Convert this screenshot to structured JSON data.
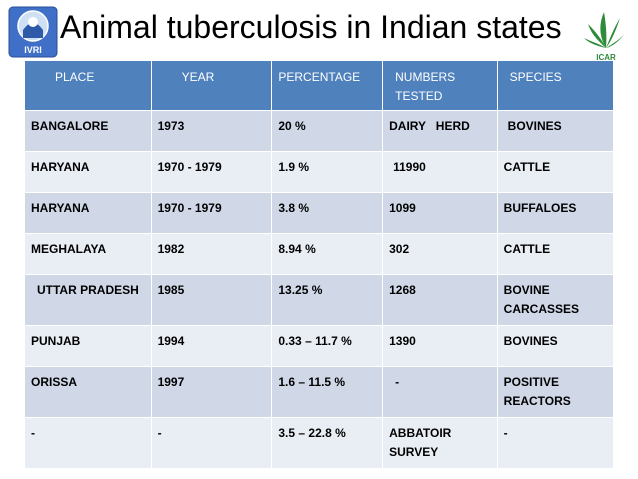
{
  "slide": {
    "title": "Animal tuberculosis in Indian states"
  },
  "logos": {
    "left": "IVRI",
    "right": "ICAR"
  },
  "table": {
    "headers": [
      "PLACE",
      "YEAR",
      "PERCENTAGE",
      "NUMBERS TESTED",
      "SPECIES"
    ],
    "rows": [
      [
        "BANGALORE",
        "1973",
        "20 %",
        "DAIRY   HERD",
        "BOVINES"
      ],
      [
        "HARYANA",
        "1970 - 1979",
        "1.9 %",
        "11990",
        "CATTLE"
      ],
      [
        "HARYANA",
        "1970 - 1979",
        "3.8 %",
        "1099",
        "BUFFALOES"
      ],
      [
        "MEGHALAYA",
        "1982",
        "8.94 %",
        "302",
        "CATTLE"
      ],
      [
        "UTTAR PRADESH",
        "1985",
        "13.25 %",
        "1268",
        "BOVINE CARCASSES"
      ],
      [
        "PUNJAB",
        "1994",
        "0.33 – 11.7 %",
        "1390",
        "BOVINES"
      ],
      [
        "ORISSA",
        "1997",
        "1.6 – 11.5 %",
        "-",
        "POSITIVE REACTORS"
      ],
      [
        "-",
        "-",
        "3.5 – 22.8 %",
        "ABBATOIR SURVEY",
        "-"
      ]
    ]
  },
  "colors": {
    "header_bg": "#4f81bd",
    "row_dark": "#d0d8e8",
    "row_light": "#e9edf4"
  }
}
